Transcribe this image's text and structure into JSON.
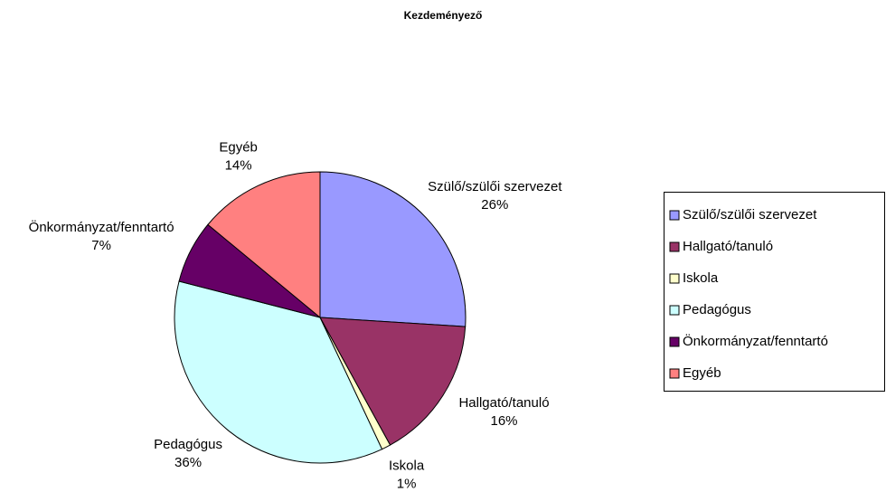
{
  "chart_data": {
    "type": "pie",
    "title": "Kezdeményező",
    "categories": [
      "Szülő/szülői szervezet",
      "Hallgató/tanuló",
      "Iskola",
      "Pedagógus",
      "Önkormányzat/fenntartó",
      "Egyéb"
    ],
    "values": [
      26,
      16,
      1,
      36,
      7,
      14
    ],
    "value_labels": [
      "26%",
      "16%",
      "1%",
      "36%",
      "7%",
      "14%"
    ],
    "colors": [
      "#9999ff",
      "#993366",
      "#ffffcc",
      "#ccffff",
      "#660066",
      "#ff8080"
    ],
    "legend": "right"
  }
}
